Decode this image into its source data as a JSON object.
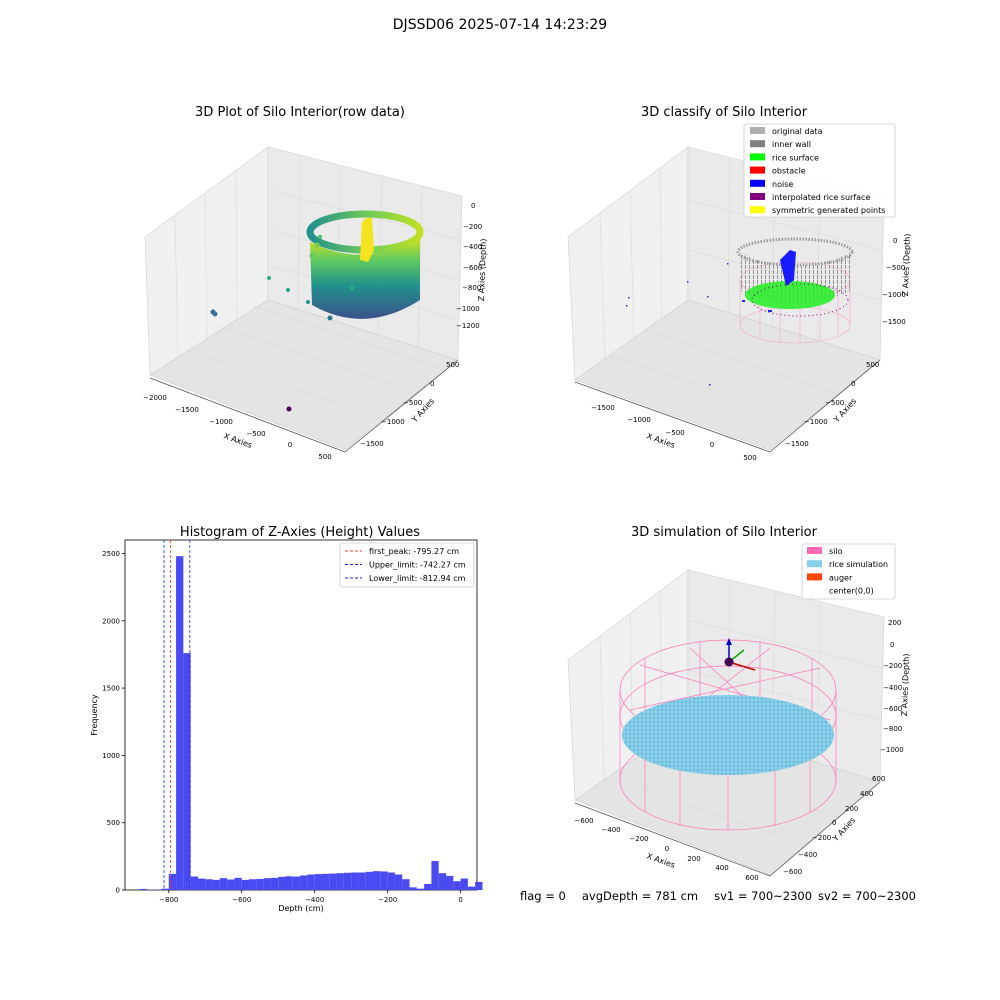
{
  "figure_title": "DJSSD06 2025-07-14 14:23:29",
  "footer": {
    "flag": "flag = 0",
    "avg_depth": "avgDepth = 781 cm",
    "sv1": "sv1 = 700~2300",
    "sv2": "sv2 = 700~2300"
  },
  "colors": {
    "hist_bar": "#4a4af2",
    "first_peak_line": "#ff3333",
    "limit_lines": "#2222dd",
    "original_data": "#b0b0b0",
    "inner_wall": "#808080",
    "rice_surface": "#00ff00",
    "obstacle": "#ff0000",
    "noise": "#0000ff",
    "interpolated_rice_surface": "#800080",
    "symmetric_generated_points": "#ffff00",
    "silo": "#ff69b4",
    "rice_simulation": "#87ceeb",
    "auger": "#ff4500"
  },
  "chart_data": [
    {
      "type": "scatter",
      "subtype": "3d",
      "title": "3D Plot of Silo Interior(row data)",
      "xlabel": "X Axies",
      "ylabel": "Y Axies",
      "zlabel": "Z Axies (Depth)",
      "x_ticks": [
        "−2000",
        "−1500",
        "−1000",
        "−500",
        "0",
        "500"
      ],
      "y_ticks": [
        "500",
        "0",
        "−500",
        "−1000",
        "−1500"
      ],
      "z_ticks": [
        "0",
        "−200",
        "−400",
        "−600",
        "−800",
        "−1000",
        "−1200"
      ],
      "xlim": [
        -2000,
        500
      ],
      "ylim": [
        -1500,
        500
      ],
      "zlim": [
        -1300,
        0
      ],
      "colormap": "viridis",
      "grid": true
    },
    {
      "type": "scatter",
      "subtype": "3d",
      "title": "3D classify of Silo Interior",
      "xlabel": "X Axies",
      "ylabel": "Y Axies",
      "zlabel": "Z Axies (Depth)",
      "x_ticks": [
        "−1500",
        "−1000",
        "−500",
        "0",
        "500"
      ],
      "y_ticks": [
        "500",
        "0",
        "−500",
        "−1000",
        "−1500"
      ],
      "z_ticks": [
        "0",
        "−500",
        "−1000",
        "−1500"
      ],
      "legend": [
        "original data",
        "inner wall",
        "rice surface",
        "obstacle",
        "noise",
        "interpolated rice surface",
        "symmetric generated points"
      ],
      "legend_position": "top-right",
      "grid": true
    },
    {
      "type": "bar",
      "subtype": "histogram",
      "title": "Histogram of Z-Axies (Height) Values",
      "xlabel": "Depth (cm)",
      "ylabel": "Frequency",
      "xlim": [
        -920,
        45
      ],
      "ylim": [
        0,
        2600
      ],
      "x_ticks": [
        "−800",
        "−600",
        "−400",
        "−200",
        "0"
      ],
      "x_tick_values": [
        -800,
        -600,
        -400,
        -200,
        0
      ],
      "y_ticks": [
        "0",
        "500",
        "1000",
        "1500",
        "2000",
        "2500"
      ],
      "y_tick_values": [
        0,
        500,
        1000,
        1500,
        2000,
        2500
      ],
      "bin_start": -900,
      "bin_width": 20,
      "values": [
        0,
        8,
        3,
        3,
        10,
        120,
        2480,
        1760,
        100,
        85,
        80,
        75,
        88,
        78,
        90,
        75,
        80,
        82,
        88,
        90,
        98,
        102,
        100,
        108,
        115,
        118,
        120,
        122,
        125,
        128,
        130,
        130,
        135,
        140,
        138,
        130,
        115,
        80,
        20,
        10,
        45,
        215,
        125,
        105,
        65,
        85,
        25,
        60
      ],
      "vlines": [
        {
          "label": "first_peak: -795.27 cm",
          "x": -795.27,
          "style": "red-dashed"
        },
        {
          "label": "Upper_limit: -742.27 cm",
          "x": -742.27,
          "style": "blue-dashed"
        },
        {
          "label": "Lower_limit: -812.94 cm",
          "x": -812.94,
          "style": "blue-dashed"
        }
      ],
      "legend_position": "top-right"
    },
    {
      "type": "scatter",
      "subtype": "3d",
      "title": "3D simulation of Silo Interior",
      "xlabel": "X Axies",
      "ylabel": "Y Axies",
      "zlabel": "Z Axies (Depth)",
      "x_ticks": [
        "−600",
        "−400",
        "−200",
        "0",
        "200",
        "400",
        "600"
      ],
      "y_ticks": [
        "600",
        "400",
        "200",
        "0",
        "−200",
        "−400",
        "−600"
      ],
      "z_ticks": [
        "200",
        "0",
        "−200",
        "−400",
        "−600",
        "−800",
        "−1000"
      ],
      "legend": [
        "silo",
        "rice simulation",
        "auger",
        "center(0,0)"
      ],
      "legend_position": "top-right",
      "grid": true
    }
  ]
}
